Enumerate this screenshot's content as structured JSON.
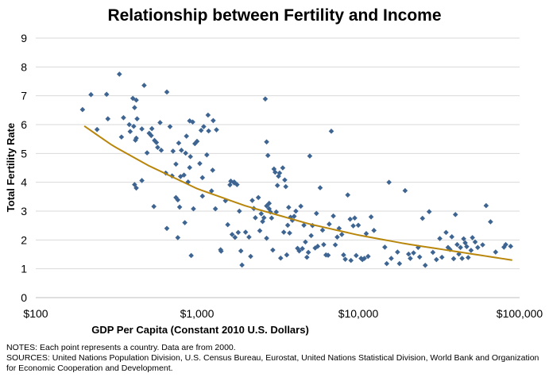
{
  "chart_data": {
    "type": "scatter",
    "title": "Relationship between Fertility and Income",
    "xlabel": "GDP Per Capita  (Constant  2010 U.S. Dollars)",
    "ylabel": "Total Fertility Rate",
    "x_scale": "log",
    "xlim": [
      100,
      100000
    ],
    "ylim": [
      0,
      9
    ],
    "x_ticks": [
      100,
      1000,
      10000,
      100000
    ],
    "x_tick_labels": [
      "$100",
      "$1,000",
      "$10,000",
      "$100,000"
    ],
    "y_ticks": [
      0,
      1,
      2,
      3,
      4,
      5,
      6,
      7,
      8,
      9
    ],
    "y_tick_labels": [
      "0",
      "1",
      "2",
      "3",
      "4",
      "5",
      "6",
      "7",
      "8",
      "9"
    ],
    "grid": "horizontal",
    "legend": "none",
    "colors": {
      "points": "#3e6592",
      "trend": "#b8860b",
      "grid": "#d9d9d9"
    },
    "series": [
      {
        "kind": "points",
        "points": [
          [
            195,
            6.52
          ],
          [
            220,
            7.04
          ],
          [
            240,
            5.83
          ],
          [
            275,
            7.05
          ],
          [
            280,
            6.2
          ],
          [
            330,
            7.75
          ],
          [
            340,
            5.57
          ],
          [
            350,
            6.24
          ],
          [
            380,
            6.0
          ],
          [
            385,
            5.76
          ],
          [
            400,
            6.91
          ],
          [
            405,
            5.94
          ],
          [
            410,
            6.59
          ],
          [
            410,
            3.92
          ],
          [
            415,
            5.46
          ],
          [
            420,
            3.8
          ],
          [
            420,
            5.53
          ],
          [
            420,
            6.85
          ],
          [
            425,
            6.2
          ],
          [
            455,
            4.06
          ],
          [
            455,
            5.85
          ],
          [
            470,
            7.36
          ],
          [
            490,
            5.02
          ],
          [
            505,
            5.7
          ],
          [
            520,
            5.62
          ],
          [
            525,
            5.86
          ],
          [
            540,
            3.16
          ],
          [
            545,
            5.45
          ],
          [
            560,
            5.38
          ],
          [
            570,
            5.21
          ],
          [
            590,
            6.07
          ],
          [
            600,
            5.11
          ],
          [
            640,
            4.32
          ],
          [
            650,
            2.4
          ],
          [
            650,
            7.13
          ],
          [
            680,
            5.93
          ],
          [
            700,
            4.22
          ],
          [
            710,
            5.08
          ],
          [
            740,
            4.63
          ],
          [
            740,
            3.47
          ],
          [
            760,
            3.39
          ],
          [
            760,
            2.08
          ],
          [
            770,
            5.36
          ],
          [
            780,
            3.14
          ],
          [
            790,
            4.2
          ],
          [
            800,
            5.11
          ],
          [
            830,
            4.25
          ],
          [
            840,
            2.6
          ],
          [
            850,
            5.01
          ],
          [
            860,
            5.6
          ],
          [
            880,
            4.01
          ],
          [
            900,
            4.51
          ],
          [
            900,
            6.13
          ],
          [
            910,
            4.89
          ],
          [
            920,
            1.46
          ],
          [
            940,
            6.09
          ],
          [
            950,
            3.08
          ],
          [
            970,
            5.34
          ],
          [
            1000,
            5.42
          ],
          [
            1040,
            4.65
          ],
          [
            1060,
            5.8
          ],
          [
            1080,
            4.16
          ],
          [
            1080,
            3.52
          ],
          [
            1100,
            5.93
          ],
          [
            1150,
            4.95
          ],
          [
            1170,
            6.33
          ],
          [
            1180,
            5.78
          ],
          [
            1230,
            3.7
          ],
          [
            1250,
            4.42
          ],
          [
            1260,
            6.14
          ],
          [
            1300,
            3.08
          ],
          [
            1320,
            5.82
          ],
          [
            1400,
            1.66
          ],
          [
            1410,
            1.61
          ],
          [
            1500,
            3.36
          ],
          [
            1550,
            2.53
          ],
          [
            1600,
            3.91
          ],
          [
            1620,
            4.04
          ],
          [
            1650,
            2.19
          ],
          [
            1700,
            4.01
          ],
          [
            1700,
            3.98
          ],
          [
            1720,
            2.09
          ],
          [
            1770,
            3.92
          ],
          [
            1800,
            2.26
          ],
          [
            1830,
            3.0
          ],
          [
            1870,
            1.62
          ],
          [
            1900,
            1.13
          ],
          [
            2000,
            2.27
          ],
          [
            2100,
            2.1
          ],
          [
            2150,
            1.43
          ],
          [
            2200,
            3.37
          ],
          [
            2250,
            3.09
          ],
          [
            2300,
            2.77
          ],
          [
            2400,
            3.47
          ],
          [
            2450,
            2.32
          ],
          [
            2500,
            2.91
          ],
          [
            2550,
            2.64
          ],
          [
            2600,
            2.77
          ],
          [
            2650,
            6.89
          ],
          [
            2700,
            5.4
          ],
          [
            2700,
            3.18
          ],
          [
            2700,
            2.06
          ],
          [
            2750,
            4.93
          ],
          [
            2800,
            3.27
          ],
          [
            2800,
            3.08
          ],
          [
            2850,
            2.97
          ],
          [
            2900,
            2.76
          ],
          [
            2950,
            1.65
          ],
          [
            3000,
            4.46
          ],
          [
            3050,
            4.35
          ],
          [
            3100,
            2.97
          ],
          [
            3150,
            3.89
          ],
          [
            3200,
            4.21
          ],
          [
            3250,
            4.32
          ],
          [
            3300,
            1.37
          ],
          [
            3400,
            4.5
          ],
          [
            3450,
            2.27
          ],
          [
            3500,
            4.08
          ],
          [
            3550,
            3.85
          ],
          [
            3600,
            1.48
          ],
          [
            3650,
            2.51
          ],
          [
            3700,
            3.13
          ],
          [
            3750,
            2.24
          ],
          [
            3800,
            2.79
          ],
          [
            3900,
            2.68
          ],
          [
            4000,
            2.82
          ],
          [
            4100,
            3.0
          ],
          [
            4200,
            1.71
          ],
          [
            4300,
            1.62
          ],
          [
            4400,
            3.17
          ],
          [
            4500,
            1.7
          ],
          [
            4600,
            2.51
          ],
          [
            4700,
            1.93
          ],
          [
            4800,
            1.4
          ],
          [
            4900,
            1.57
          ],
          [
            5000,
            4.91
          ],
          [
            5100,
            2.15
          ],
          [
            5200,
            2.5
          ],
          [
            5400,
            1.72
          ],
          [
            5500,
            2.92
          ],
          [
            5600,
            1.78
          ],
          [
            5800,
            3.81
          ],
          [
            6000,
            2.34
          ],
          [
            6100,
            1.84
          ],
          [
            6300,
            1.48
          ],
          [
            6500,
            1.47
          ],
          [
            6600,
            2.55
          ],
          [
            6800,
            5.77
          ],
          [
            7000,
            2.83
          ],
          [
            7200,
            1.83
          ],
          [
            7400,
            2.1
          ],
          [
            7600,
            2.4
          ],
          [
            7900,
            2.19
          ],
          [
            8100,
            1.48
          ],
          [
            8300,
            1.33
          ],
          [
            8600,
            3.56
          ],
          [
            8900,
            2.72
          ],
          [
            9000,
            1.29
          ],
          [
            9300,
            2.49
          ],
          [
            9500,
            2.76
          ],
          [
            9700,
            1.46
          ],
          [
            10000,
            2.51
          ],
          [
            10400,
            1.36
          ],
          [
            10600,
            1.32
          ],
          [
            10900,
            1.36
          ],
          [
            11200,
            2.22
          ],
          [
            11500,
            1.43
          ],
          [
            12000,
            2.8
          ],
          [
            12500,
            2.33
          ],
          [
            14600,
            1.75
          ],
          [
            15000,
            1.18
          ],
          [
            15500,
            4.0
          ],
          [
            16000,
            1.36
          ],
          [
            17500,
            1.58
          ],
          [
            18000,
            1.18
          ],
          [
            19500,
            3.71
          ],
          [
            20500,
            1.51
          ],
          [
            21000,
            1.36
          ],
          [
            22000,
            1.55
          ],
          [
            23500,
            1.74
          ],
          [
            24000,
            1.41
          ],
          [
            25000,
            2.75
          ],
          [
            26000,
            1.12
          ],
          [
            27500,
            2.98
          ],
          [
            29000,
            1.57
          ],
          [
            30500,
            1.32
          ],
          [
            32000,
            2.05
          ],
          [
            33000,
            1.4
          ],
          [
            35000,
            2.26
          ],
          [
            36000,
            1.74
          ],
          [
            37000,
            1.67
          ],
          [
            38000,
            2.11
          ],
          [
            39000,
            1.35
          ],
          [
            40000,
            2.88
          ],
          [
            41000,
            1.84
          ],
          [
            42000,
            1.51
          ],
          [
            43000,
            1.74
          ],
          [
            44000,
            1.36
          ],
          [
            45000,
            2.04
          ],
          [
            46000,
            1.9
          ],
          [
            47000,
            1.77
          ],
          [
            48000,
            1.39
          ],
          [
            50000,
            1.64
          ],
          [
            51000,
            2.08
          ],
          [
            53000,
            1.93
          ],
          [
            55000,
            1.74
          ],
          [
            59000,
            1.83
          ],
          [
            62000,
            3.19
          ],
          [
            66000,
            2.63
          ],
          [
            71000,
            1.58
          ],
          [
            80000,
            1.75
          ],
          [
            82000,
            1.84
          ],
          [
            88000,
            1.78
          ]
        ]
      },
      {
        "kind": "trend",
        "x": [
          200,
          300,
          500,
          1000,
          2000,
          5000,
          10000,
          20000,
          50000,
          90000
        ],
        "values": [
          5.95,
          5.27,
          4.58,
          3.78,
          3.18,
          2.55,
          2.17,
          1.86,
          1.52,
          1.3
        ]
      }
    ]
  },
  "notes": [
    "NOTES: Each point represents a country. Data are from  2000.",
    "SOURCES: United Nations Population Division, U.S. Census Bureau, Eurostat, United Nations Statistical Division, World Bank and Organization for Economic Cooperation  and Development."
  ]
}
